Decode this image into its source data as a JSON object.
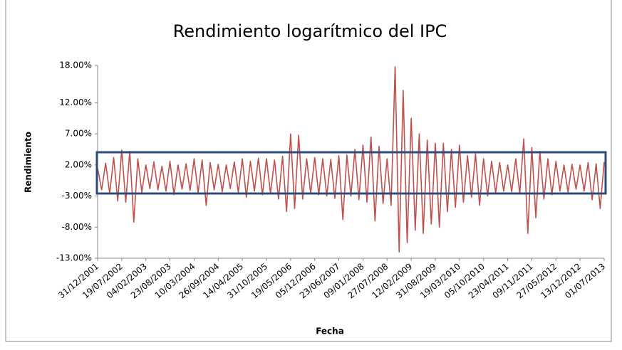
{
  "chart_data": {
    "type": "line",
    "title": "Rendimiento logarítmico del IPC",
    "x_label": "Fecha",
    "y_label": "Rendimiento",
    "color": "#c0504d",
    "grid": false,
    "categories": [
      "31/12/2001",
      null,
      null,
      null,
      null,
      null,
      "19/07/2002",
      null,
      null,
      null,
      null,
      null,
      "04/02/2003",
      null,
      null,
      null,
      null,
      null,
      "23/08/2003",
      null,
      null,
      null,
      null,
      null,
      "10/03/2004",
      null,
      null,
      null,
      null,
      null,
      "26/09/2004",
      null,
      null,
      null,
      null,
      null,
      "14/04/2005",
      null,
      null,
      null,
      null,
      null,
      "31/10/2005",
      null,
      null,
      null,
      null,
      null,
      "19/05/2006",
      null,
      null,
      null,
      null,
      null,
      "05/12/2006",
      null,
      null,
      null,
      null,
      null,
      "23/06/2007",
      null,
      null,
      null,
      null,
      null,
      "09/01/2008",
      null,
      null,
      null,
      null,
      null,
      "27/07/2008",
      null,
      null,
      null,
      null,
      null,
      "12/02/2009",
      null,
      null,
      null,
      null,
      null,
      "31/08/2009",
      null,
      null,
      null,
      null,
      null,
      "19/03/2010",
      null,
      null,
      null,
      null,
      null,
      "05/10/2010",
      null,
      null,
      null,
      null,
      null,
      "23/04/2011",
      null,
      null,
      null,
      null,
      null,
      "09/11/2011",
      null,
      null,
      null,
      null,
      null,
      "27/05/2012",
      null,
      null,
      null,
      null,
      null,
      "13/12/2012",
      null,
      null,
      null,
      null,
      null,
      "01/07/2013"
    ],
    "values": [
      1.5,
      -2.0,
      2.3,
      -2.6,
      3.2,
      -3.8,
      4.4,
      -4.0,
      4.2,
      -7.2,
      3.0,
      -2.4,
      2.0,
      -1.8,
      2.5,
      -2.0,
      1.8,
      -2.2,
      2.6,
      -2.8,
      2.0,
      -1.9,
      2.2,
      -2.1,
      3.0,
      -2.5,
      2.8,
      -4.5,
      2.4,
      -2.0,
      2.1,
      -2.3,
      2.0,
      -1.8,
      2.5,
      -2.4,
      3.0,
      -3.2,
      2.6,
      -2.2,
      3.1,
      -2.8,
      3.0,
      -2.6,
      2.8,
      -3.5,
      3.4,
      -5.5,
      7.0,
      -5.0,
      6.8,
      -3.5,
      3.0,
      -2.6,
      3.2,
      -2.8,
      3.0,
      -3.0,
      2.9,
      -3.4,
      3.5,
      -6.8,
      3.6,
      -3.0,
      4.5,
      -3.6,
      5.2,
      -4.0,
      6.5,
      -7.0,
      5.0,
      -4.2,
      3.0,
      -4.5,
      17.8,
      -12.0,
      14.0,
      -10.5,
      9.5,
      -8.5,
      7.0,
      -9.0,
      6.0,
      -7.5,
      5.5,
      -8.0,
      5.5,
      -5.5,
      4.5,
      -4.8,
      5.2,
      -4.0,
      3.5,
      -3.2,
      3.8,
      -4.5,
      3.0,
      -3.0,
      2.6,
      -2.5,
      2.4,
      -2.2,
      2.0,
      -2.3,
      3.0,
      -2.6,
      6.2,
      -9.0,
      4.8,
      -6.5,
      4.2,
      -3.5,
      3.0,
      -2.8,
      2.6,
      -2.2,
      2.0,
      -2.4,
      2.1,
      -1.9,
      2.0,
      -2.2,
      2.4,
      -3.6,
      2.2,
      -5.0,
      2.5
    ],
    "ylim": [
      -13,
      18
    ],
    "yticks": [
      {
        "value": 18,
        "label": "18.00%"
      },
      {
        "value": 12,
        "label": "12.00%"
      },
      {
        "value": 7,
        "label": "7.00%"
      },
      {
        "value": 2,
        "label": "2.00%"
      },
      {
        "value": -3,
        "label": "-3.00%"
      },
      {
        "value": -8,
        "label": "-8.00%"
      },
      {
        "value": -13,
        "label": "-13.00%"
      }
    ]
  }
}
